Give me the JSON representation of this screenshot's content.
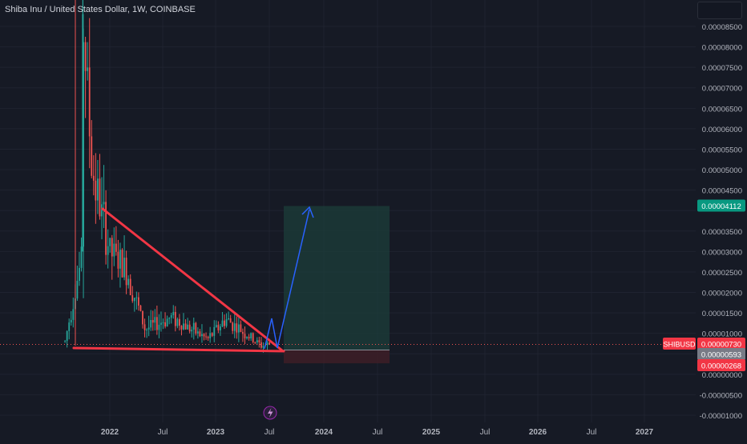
{
  "header": {
    "title": "Shiba Inu / United States Dollar, 1W, COINBASE"
  },
  "price_axis": {
    "ticks": [
      "0.00008500",
      "0.00008000",
      "0.00007500",
      "0.00007000",
      "0.00006500",
      "0.00006000",
      "0.00005500",
      "0.00005000",
      "0.00004500",
      "0.00003500",
      "0.00003000",
      "0.00002500",
      "0.00002000",
      "0.00001500",
      "0.00001000",
      "0.00000500",
      "0.00000000",
      "-0.00000500",
      "-0.00001000"
    ],
    "ymin": -1e-05,
    "ymax": 8.5e-05
  },
  "time_axis": {
    "labels": [
      "2022",
      "Jul",
      "2023",
      "Jul",
      "2024",
      "Jul",
      "2025",
      "Jul",
      "2026",
      "Jul",
      "2027"
    ]
  },
  "markers": {
    "symbol_tag": "SHIBUSD",
    "current_price": "0.00000730",
    "target_price": "0.00004112",
    "entry_price": "0.00000593",
    "stop_price": "0.00000268"
  },
  "colors": {
    "background": "#161a25",
    "grid": "#1f2330",
    "up": "#26a69a",
    "down": "#ef5350",
    "trendline": "#f23645",
    "arrow": "#2962ff",
    "target_zone": "#1c3d3a",
    "stop_zone": "#3d1f27",
    "axis_text": "#b2b5be"
  },
  "chart_data": {
    "type": "candlestick",
    "title": "Shiba Inu / United States Dollar, 1W, COINBASE",
    "timeframe": "1W",
    "xlabel": "",
    "ylabel": "",
    "ylim": [
      -1e-05,
      8.5e-05
    ],
    "x_labels": [
      "2022",
      "Jul",
      "2023",
      "Jul",
      "2024",
      "Jul",
      "2025",
      "Jul",
      "2026",
      "Jul",
      "2027"
    ],
    "series": [
      {
        "name": "SHIBUSD",
        "price_path": [
          [
            "2021-08",
            8e-06
          ],
          [
            "2021-10",
            3e-05
          ],
          [
            "2021-10",
            8.8e-05
          ],
          [
            "2021-11",
            5e-05
          ],
          [
            "2022-01",
            3e-05
          ],
          [
            "2022-03",
            2.5e-05
          ],
          [
            "2022-05",
            1.1e-05
          ],
          [
            "2022-08",
            1.4e-05
          ],
          [
            "2022-12",
            8.5e-06
          ],
          [
            "2023-02",
            1.35e-05
          ],
          [
            "2023-06",
            7e-06
          ],
          [
            "2023-07",
            7.3e-06
          ]
        ]
      }
    ],
    "annotations": {
      "descending_trendline": {
        "start": [
          "2021-11",
          4.1e-05
        ],
        "end": [
          "2023-08",
          6e-06
        ]
      },
      "support_line": {
        "start": [
          "2021-09",
          6.5e-06
        ],
        "end": [
          "2023-08",
          6e-06
        ]
      },
      "long_position": {
        "entry": 5.93e-06,
        "target": 4.112e-05,
        "stop": 2.68e-06
      },
      "projection_arrow": [
        "2023-07",
        "2023-11"
      ]
    }
  }
}
